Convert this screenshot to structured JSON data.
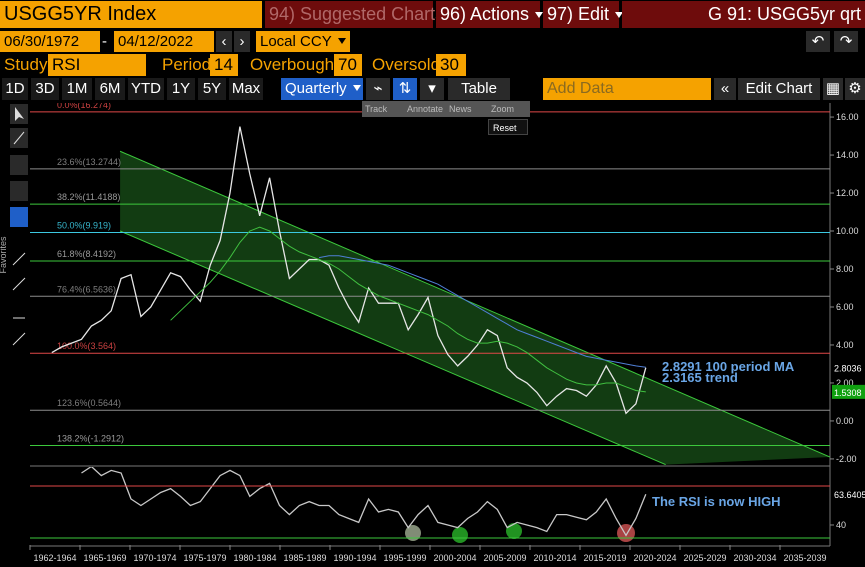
{
  "header": {
    "security": "USGG5YR Index",
    "menu": [
      "94) Suggested Charts",
      "96) Actions",
      "97) Edit"
    ],
    "page_title": "G 91: USGG5yr qrt"
  },
  "dates": {
    "start": "06/30/1972",
    "end": "04/12/2022",
    "currency": "Local CCY"
  },
  "study": {
    "label": "Study",
    "name": "RSI",
    "period_label": "Period",
    "period": 14,
    "overbought_label": "Overbought",
    "overbought": 70,
    "oversold_label": "Oversold",
    "oversold": 30
  },
  "toolbar": {
    "ranges": [
      "1D",
      "3D",
      "1M",
      "6M",
      "YTD",
      "1Y",
      "5Y",
      "Max"
    ],
    "frequency": "Quarterly",
    "table": "Table",
    "add_data": "Add Data",
    "edit_chart": "Edit Chart"
  },
  "sidebar": {
    "favorites": "Favorites"
  },
  "popup": {
    "tools": [
      "Track",
      "Annotate",
      "News",
      "Zoom"
    ],
    "reset": "Reset"
  },
  "time_axis": [
    "1962-1964",
    "1965-1969",
    "1970-1974",
    "1975-1979",
    "1980-1984",
    "1985-1989",
    "1990-1994",
    "1995-1999",
    "2000-2004",
    "2005-2009",
    "2010-2014",
    "2015-2019",
    "2020-2024",
    "2025-2029",
    "2030-2034",
    "2035-2039"
  ],
  "chart_data": [
    {
      "type": "line",
      "xlim": [
        1959.8,
        2040.6
      ],
      "ylim": [
        -2.32,
        16.74
      ],
      "yticks": [
        {
          "value": 16,
          "label": "16.00"
        },
        {
          "value": 14,
          "label": "14.00"
        },
        {
          "value": 12,
          "label": "12.00"
        },
        {
          "value": 10,
          "label": "10.00"
        },
        {
          "value": 8,
          "label": "8.00"
        },
        {
          "value": 6,
          "label": "6.00"
        },
        {
          "value": 4,
          "label": "4.00"
        },
        {
          "value": 2,
          "label": "2.00"
        },
        {
          "value": 0,
          "label": "0.00"
        },
        {
          "value": -2,
          "label": "-2.00"
        }
      ],
      "x": [
        1962,
        1963,
        1964,
        1965,
        1966,
        1967,
        1968,
        1969,
        1970,
        1971,
        1972,
        1973,
        1974,
        1975,
        1976,
        1977,
        1978,
        1979,
        1980,
        1981,
        1982,
        1983,
        1984,
        1985,
        1986,
        1987,
        1988,
        1989,
        1990,
        1991,
        1992,
        1993,
        1994,
        1995,
        1996,
        1997,
        1998,
        1999,
        2000,
        2001,
        2002,
        2003,
        2004,
        2005,
        2006,
        2007,
        2008,
        2009,
        2010,
        2011,
        2012,
        2013,
        2014,
        2015,
        2016,
        2017,
        2018,
        2019,
        2020,
        2021,
        2022
      ],
      "series": [
        {
          "name": "USGG5YR Index",
          "color": "#e6e6e6",
          "values": [
            3.6,
            3.9,
            4.1,
            4.3,
            5.0,
            5.3,
            5.8,
            7.5,
            7.7,
            5.5,
            6.0,
            6.9,
            7.8,
            7.6,
            6.9,
            6.3,
            8.2,
            9.5,
            12.0,
            15.5,
            13.0,
            10.8,
            12.8,
            10.0,
            7.5,
            8.0,
            8.5,
            8.5,
            8.2,
            7.0,
            6.0,
            5.2,
            7.0,
            6.2,
            6.2,
            6.2,
            4.8,
            5.6,
            6.5,
            4.5,
            3.5,
            2.9,
            3.4,
            4.0,
            4.8,
            4.5,
            2.8,
            2.3,
            2.0,
            1.5,
            0.8,
            1.3,
            1.7,
            1.6,
            1.3,
            1.9,
            2.9,
            2.0,
            0.4,
            0.9,
            2.8036
          ]
        },
        {
          "name": "100 period MA",
          "color": "#4f7fd6",
          "values": [
            null,
            null,
            null,
            null,
            null,
            null,
            null,
            null,
            null,
            null,
            null,
            null,
            null,
            null,
            null,
            null,
            null,
            null,
            null,
            null,
            null,
            null,
            null,
            null,
            null,
            null,
            null,
            8.6,
            8.7,
            8.7,
            8.6,
            8.5,
            8.4,
            8.3,
            8.2,
            8.0,
            7.8,
            7.6,
            7.4,
            7.2,
            6.9,
            6.6,
            6.3,
            6.0,
            5.7,
            5.4,
            5.1,
            4.8,
            4.6,
            4.4,
            4.2,
            4.0,
            3.8,
            3.6,
            3.4,
            3.3,
            3.2,
            3.1,
            3.0,
            2.9,
            2.8291
          ]
        },
        {
          "name": "MA",
          "color": "#40c040",
          "values": [
            null,
            null,
            null,
            null,
            null,
            null,
            null,
            null,
            null,
            null,
            null,
            null,
            5.3,
            5.8,
            6.3,
            6.8,
            7.3,
            7.9,
            8.6,
            9.4,
            10.0,
            10.2,
            10.0,
            9.6,
            9.2,
            8.9,
            8.7,
            8.5,
            8.3,
            8.0,
            7.6,
            7.2,
            6.9,
            6.6,
            6.4,
            6.2,
            6.0,
            5.8,
            5.6,
            5.3,
            5.0,
            4.6,
            4.3,
            4.1,
            4.1,
            4.2,
            4.1,
            3.9,
            3.6,
            3.2,
            2.8,
            2.5,
            2.2,
            2.0,
            1.9,
            1.9,
            2.0,
            2.0,
            1.8,
            1.6,
            1.5308
          ]
        }
      ],
      "levels": [
        {
          "value": 16.274,
          "label": "0.0%(16.274)",
          "color": "#e04848"
        },
        {
          "value": 13.2744,
          "label": "23.6%(13.2744)",
          "color": "#8c8c8c"
        },
        {
          "value": 11.4188,
          "label": "38.2%(11.4188)",
          "color": "#3cc83c"
        },
        {
          "value": 9.919,
          "label": "50.0%(9.919)",
          "color": "#3cc8e0"
        },
        {
          "value": 8.4192,
          "label": "61.8%(8.4192)",
          "color": "#3cc83c"
        },
        {
          "value": 6.5636,
          "label": "76.4%(6.5636)",
          "color": "#8c8c8c"
        },
        {
          "value": 3.564,
          "label": "100.0%(3.564)",
          "color": "#e04848"
        },
        {
          "value": 0.5644,
          "label": "123.6%(0.5644)",
          "color": "#8c8c8c"
        },
        {
          "value": -1.2912,
          "label": "138.2%(-1.2912)",
          "color": "#3cc83c"
        }
      ],
      "channel": {
        "color": "#3cc83c",
        "upper": {
          "x": [
            1968.9,
            2040.6
          ],
          "y": [
            14.2,
            -1.9
          ]
        },
        "lower": {
          "x": [
            1968.9,
            2024.0
          ],
          "y": [
            10.0,
            -2.3
          ]
        }
      },
      "annotations": [
        "2.8291 100 period MA",
        "2.3165 trend"
      ]
    },
    {
      "type": "line",
      "ylim": [
        24.6,
        84.6
      ],
      "yticks": [
        40
      ],
      "x": [
        1965,
        1966,
        1967,
        1968,
        1969,
        1970,
        1971,
        1972,
        1973,
        1974,
        1975,
        1976,
        1977,
        1978,
        1979,
        1980,
        1981,
        1982,
        1983,
        1984,
        1985,
        1986,
        1987,
        1988,
        1989,
        1990,
        1991,
        1992,
        1993,
        1994,
        1995,
        1996,
        1997,
        1998,
        1999,
        2000,
        2001,
        2002,
        2003,
        2004,
        2005,
        2006,
        2007,
        2008,
        2009,
        2010,
        2011,
        2012,
        2013,
        2014,
        2015,
        2016,
        2017,
        2018,
        2019,
        2020,
        2021,
        2022
      ],
      "series": [
        {
          "name": "RSI",
          "color": "#c8c8c8",
          "values": [
            80,
            85,
            78,
            82,
            80,
            60,
            55,
            60,
            65,
            68,
            62,
            55,
            58,
            68,
            78,
            82,
            78,
            62,
            68,
            72,
            55,
            48,
            55,
            58,
            55,
            55,
            48,
            45,
            42,
            60,
            50,
            52,
            50,
            38,
            48,
            55,
            42,
            40,
            38,
            45,
            50,
            58,
            52,
            38,
            42,
            40,
            38,
            35,
            48,
            48,
            46,
            44,
            50,
            60,
            45,
            32,
            45,
            63.6405
          ]
        }
      ],
      "annotation": "The RSI is now HIGH"
    }
  ]
}
